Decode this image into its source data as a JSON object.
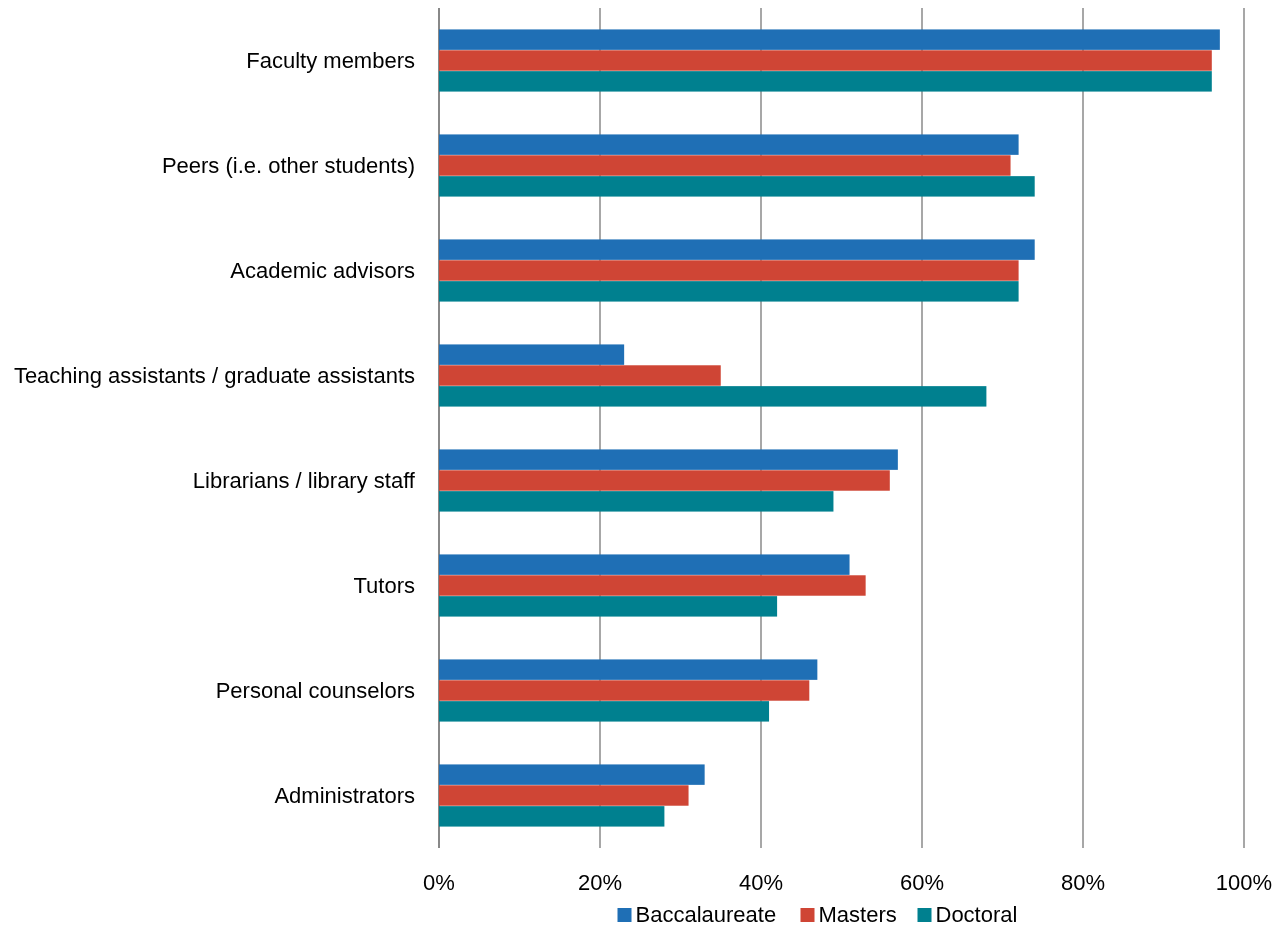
{
  "chart_data": {
    "type": "bar",
    "orientation": "horizontal",
    "categories": [
      "Faculty members",
      "Peers (i.e. other students)",
      "Academic advisors",
      "Teaching assistants / graduate assistants",
      "Librarians / library staff",
      "Tutors",
      "Personal counselors",
      "Administrators"
    ],
    "series": [
      {
        "name": "Baccalaureate",
        "color": "#1f6fb5",
        "values": [
          97,
          72,
          74,
          23,
          57,
          51,
          47,
          33
        ]
      },
      {
        "name": "Masters",
        "color": "#cf4535",
        "values": [
          96,
          71,
          72,
          35,
          56,
          53,
          46,
          31
        ]
      },
      {
        "name": "Doctoral",
        "color": "#00808f",
        "values": [
          96,
          74,
          72,
          68,
          49,
          42,
          41,
          28
        ]
      }
    ],
    "xlim": [
      0,
      100
    ],
    "xticks": [
      {
        "value": 0,
        "label": "0%"
      },
      {
        "value": 20,
        "label": "20%"
      },
      {
        "value": 40,
        "label": "40%"
      },
      {
        "value": 60,
        "label": "60%"
      },
      {
        "value": 80,
        "label": "80%"
      },
      {
        "value": 100,
        "label": "100%"
      }
    ],
    "grid": "x",
    "legend": "bottom"
  }
}
